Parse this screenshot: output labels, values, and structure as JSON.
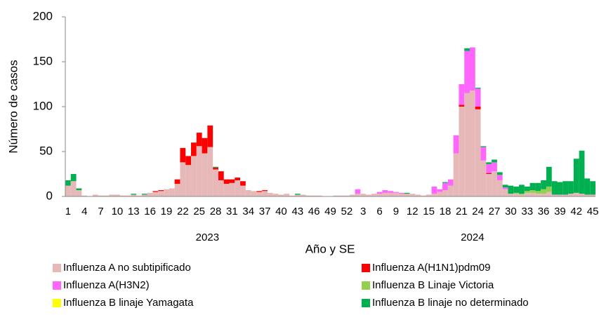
{
  "chart_data": {
    "type": "stacked_bar",
    "y_label": "Número de casos",
    "x_label": "Año y SE",
    "x_groups": [
      "2023",
      "2024"
    ],
    "categories": [
      "1",
      null,
      null,
      "4",
      null,
      null,
      "7",
      null,
      null,
      "10",
      null,
      null,
      "13",
      null,
      null,
      "16",
      null,
      null,
      "19",
      null,
      null,
      "22",
      null,
      null,
      "25",
      null,
      null,
      "28",
      null,
      null,
      "31",
      null,
      null,
      "34",
      null,
      null,
      "37",
      null,
      null,
      "40",
      null,
      null,
      "43",
      null,
      null,
      "46",
      null,
      null,
      "49",
      null,
      null,
      "52",
      null,
      null,
      "3",
      null,
      null,
      "6",
      null,
      null,
      "9",
      null,
      null,
      "12",
      null,
      null,
      "15",
      null,
      null,
      "18",
      null,
      null,
      "21",
      null,
      null,
      "24",
      null,
      null,
      "27",
      null,
      null,
      "30",
      null,
      null,
      "33",
      null,
      null,
      "36",
      null,
      null,
      "39",
      null,
      null,
      "42",
      null,
      null,
      "45"
    ],
    "ylim": [
      0,
      200
    ],
    "yticks": [
      0,
      50,
      100,
      150,
      200
    ],
    "series": [
      {
        "name": "Influenza A no subtipificado",
        "color": "#e6b8b7",
        "values": [
          12,
          17,
          7,
          1,
          0,
          2,
          1,
          1,
          2,
          2,
          1,
          1,
          2,
          1,
          2,
          4,
          5,
          6,
          8,
          9,
          14,
          38,
          35,
          45,
          56,
          48,
          55,
          30,
          18,
          14,
          15,
          18,
          12,
          7,
          6,
          5,
          6,
          4,
          3,
          2,
          3,
          1,
          2,
          2,
          1,
          1,
          1,
          0,
          0,
          1,
          1,
          1,
          2,
          3,
          3,
          2,
          3,
          3,
          4,
          4,
          4,
          3,
          3,
          3,
          2,
          1,
          2,
          3,
          5,
          7,
          12,
          48,
          100,
          115,
          118,
          97,
          40,
          25,
          28,
          18,
          8,
          3,
          3,
          2,
          4,
          4,
          3,
          3,
          5,
          2,
          2,
          2,
          3,
          4,
          3,
          2,
          2
        ]
      },
      {
        "name": "Influenza A(H1N1)pdm09",
        "color": "#ff0000",
        "values": [
          0,
          0,
          0,
          0,
          0,
          0,
          0,
          0,
          0,
          0,
          0,
          0,
          0,
          0,
          0,
          0,
          1,
          1,
          0,
          0,
          5,
          16,
          10,
          15,
          15,
          17,
          24,
          2,
          10,
          5,
          4,
          3,
          5,
          0,
          0,
          1,
          1,
          0,
          0,
          0,
          0,
          0,
          0,
          0,
          0,
          0,
          0,
          0,
          0,
          0,
          0,
          0,
          0,
          0,
          0,
          0,
          0,
          0,
          0,
          0,
          0,
          0,
          0,
          0,
          0,
          0,
          0,
          0,
          0,
          0,
          0,
          0,
          2,
          0,
          0,
          3,
          0,
          1,
          0,
          0,
          0,
          0,
          0,
          0,
          0,
          0,
          0,
          0,
          0,
          0,
          0,
          0,
          0,
          0,
          0,
          0,
          0
        ]
      },
      {
        "name": "Influenza A(H3N2)",
        "color": "#ff66ff",
        "values": [
          0,
          0,
          0,
          0,
          0,
          0,
          0,
          0,
          0,
          0,
          0,
          0,
          0,
          0,
          0,
          0,
          0,
          0,
          0,
          0,
          0,
          0,
          0,
          0,
          0,
          0,
          0,
          0,
          0,
          0,
          0,
          0,
          0,
          0,
          0,
          0,
          0,
          0,
          0,
          0,
          0,
          0,
          0,
          0,
          0,
          0,
          0,
          0,
          0,
          0,
          0,
          0,
          0,
          5,
          0,
          0,
          0,
          2,
          3,
          2,
          1,
          1,
          0,
          0,
          0,
          0,
          0,
          8,
          3,
          8,
          7,
          20,
          23,
          47,
          48,
          20,
          15,
          10,
          10,
          6,
          2,
          0,
          0,
          0,
          0,
          0,
          0,
          0,
          0,
          0,
          0,
          0,
          0,
          0,
          0,
          0,
          0
        ]
      },
      {
        "name": "Influenza B Linaje Victoria",
        "color": "#92d050",
        "values": [
          0,
          0,
          0,
          0,
          0,
          0,
          0,
          0,
          0,
          0,
          0,
          0,
          0,
          0,
          0,
          0,
          0,
          0,
          0,
          0,
          0,
          0,
          0,
          0,
          0,
          0,
          0,
          0,
          0,
          0,
          0,
          0,
          0,
          0,
          0,
          0,
          0,
          0,
          0,
          0,
          0,
          0,
          0,
          0,
          0,
          0,
          0,
          0,
          0,
          0,
          0,
          0,
          0,
          0,
          0,
          0,
          0,
          0,
          0,
          0,
          0,
          0,
          0,
          0,
          0,
          0,
          0,
          0,
          0,
          0,
          0,
          0,
          0,
          0,
          0,
          0,
          0,
          0,
          0,
          0,
          0,
          0,
          1,
          1,
          2,
          3,
          3,
          5,
          6,
          0,
          0,
          0,
          0,
          0,
          0,
          0,
          0
        ]
      },
      {
        "name": "Influenza B linaje Yamagata",
        "color": "#ffff00",
        "values": [
          0,
          0,
          0,
          0,
          0,
          0,
          0,
          0,
          0,
          0,
          0,
          0,
          0,
          0,
          0,
          0,
          0,
          0,
          0,
          0,
          0,
          0,
          0,
          0,
          0,
          0,
          0,
          0,
          0,
          0,
          0,
          0,
          0,
          0,
          0,
          0,
          0,
          0,
          0,
          0,
          0,
          0,
          0,
          0,
          0,
          0,
          0,
          0,
          0,
          0,
          0,
          0,
          0,
          0,
          0,
          0,
          0,
          0,
          0,
          0,
          0,
          0,
          0,
          0,
          0,
          0,
          0,
          0,
          0,
          0,
          0,
          0,
          0,
          0,
          0,
          0,
          0,
          0,
          0,
          0,
          0,
          0,
          0,
          0,
          0,
          0,
          0,
          0,
          0,
          0,
          0,
          0,
          0,
          0,
          0,
          0,
          0
        ]
      },
      {
        "name": "Influenza B linaje no determinado",
        "color": "#00b050",
        "values": [
          6,
          8,
          2,
          0,
          0,
          0,
          0,
          0,
          0,
          0,
          0,
          0,
          1,
          0,
          1,
          0,
          0,
          0,
          0,
          0,
          0,
          0,
          0,
          0,
          0,
          0,
          0,
          1,
          0,
          0,
          0,
          0,
          0,
          0,
          0,
          0,
          0,
          0,
          0,
          0,
          0,
          0,
          1,
          0,
          0,
          0,
          0,
          0,
          0,
          0,
          0,
          0,
          0,
          0,
          0,
          0,
          0,
          0,
          0,
          0,
          0,
          0,
          1,
          0,
          0,
          0,
          0,
          0,
          0,
          1,
          0,
          0,
          0,
          3,
          0,
          1,
          1,
          2,
          3,
          3,
          3,
          9,
          7,
          10,
          5,
          8,
          9,
          10,
          22,
          15,
          14,
          15,
          14,
          38,
          48,
          18,
          15
        ]
      }
    ]
  }
}
